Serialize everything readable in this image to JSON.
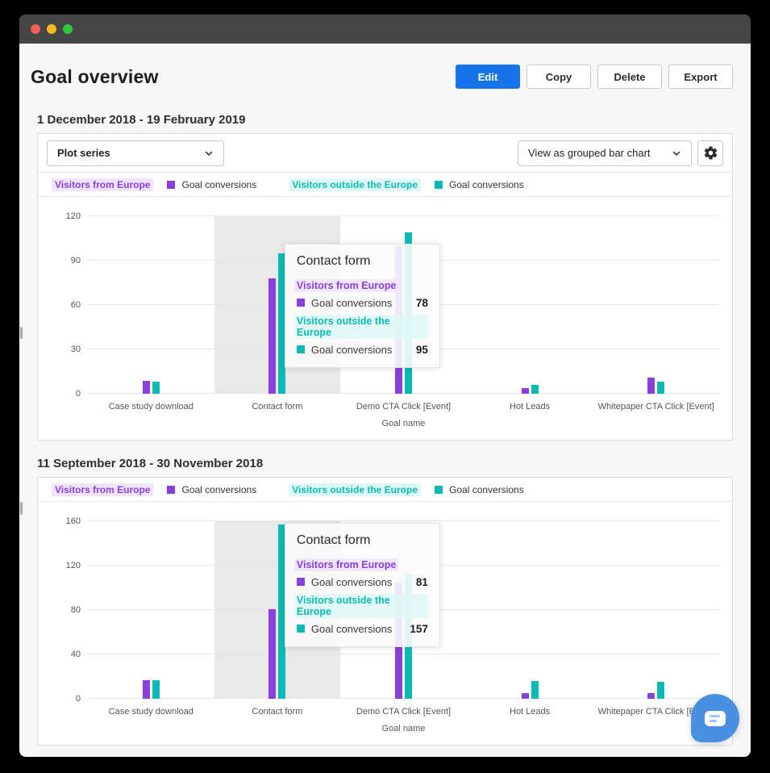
{
  "header": {
    "title": "Goal overview",
    "buttons": {
      "edit": "Edit",
      "copy": "Copy",
      "delete": "Delete",
      "export": "Export"
    }
  },
  "colors": {
    "purple": "#8a3fdc",
    "purple_highlight": "#f0e4fb",
    "teal": "#0bbab4",
    "teal_highlight": "#ddf8f6",
    "primary_blue": "#1774e8",
    "chat_blue": "#4a90e2"
  },
  "legend": {
    "groups": [
      {
        "label": "Visitors from Europe",
        "series_label": "Goal conversions",
        "color_key": "purple"
      },
      {
        "label": "Visitors outside the Europe",
        "series_label": "Goal conversions",
        "color_key": "teal"
      }
    ]
  },
  "sections": [
    {
      "heading": "1 December 2018 - 19 February 2019",
      "toolbar": {
        "plot_series": "Plot series",
        "view_select": "View as grouped bar chart"
      }
    },
    {
      "heading": "11 September 2018 - 30 November 2018"
    }
  ],
  "chart_data": [
    {
      "type": "bar",
      "title": "1 December 2018 - 19 February 2019",
      "categories": [
        "Case study download",
        "Contact form",
        "Demo CTA Click [Event]",
        "Hot Leads",
        "Whitepaper CTA Click [Event]"
      ],
      "series": [
        {
          "name": "Visitors from Europe — Goal conversions",
          "color_key": "purple",
          "values": [
            9,
            78,
            100,
            4,
            11
          ]
        },
        {
          "name": "Visitors outside the Europe — Goal conversions",
          "color_key": "teal",
          "values": [
            8,
            95,
            109,
            6,
            8
          ]
        }
      ],
      "xlabel": "Goal name",
      "ylim": [
        0,
        120
      ],
      "yticks": [
        0,
        30,
        60,
        90,
        120
      ],
      "grid": true,
      "legend_position": "top",
      "highlighted_category_index": 1,
      "tooltip": {
        "title": "Contact form",
        "rows": [
          {
            "group": "Visitors from Europe",
            "group_color_key": "purple",
            "label": "Goal conversions",
            "value": "78"
          },
          {
            "group": "Visitors outside the Europe",
            "group_color_key": "teal",
            "label": "Goal conversions",
            "value": "95"
          }
        ]
      }
    },
    {
      "type": "bar",
      "title": "11 September 2018 - 30 November 2018",
      "categories": [
        "Case study download",
        "Contact form",
        "Demo CTA Click [Event]",
        "Hot Leads",
        "Whitepaper CTA Click [Event]"
      ],
      "series": [
        {
          "name": "Visitors from Europe — Goal conversions",
          "color_key": "purple",
          "values": [
            17,
            81,
            105,
            5,
            5
          ]
        },
        {
          "name": "Visitors outside the Europe — Goal conversions",
          "color_key": "teal",
          "values": [
            17,
            157,
            113,
            16,
            15
          ]
        }
      ],
      "xlabel": "Goal name",
      "ylim": [
        0,
        160
      ],
      "yticks": [
        0,
        40,
        80,
        120,
        160
      ],
      "grid": true,
      "legend_position": "top",
      "highlighted_category_index": 1,
      "tooltip": {
        "title": "Contact form",
        "rows": [
          {
            "group": "Visitors from Europe",
            "group_color_key": "purple",
            "label": "Goal conversions",
            "value": "81"
          },
          {
            "group": "Visitors outside the Europe",
            "group_color_key": "teal",
            "label": "Goal conversions",
            "value": "157"
          }
        ]
      }
    }
  ]
}
